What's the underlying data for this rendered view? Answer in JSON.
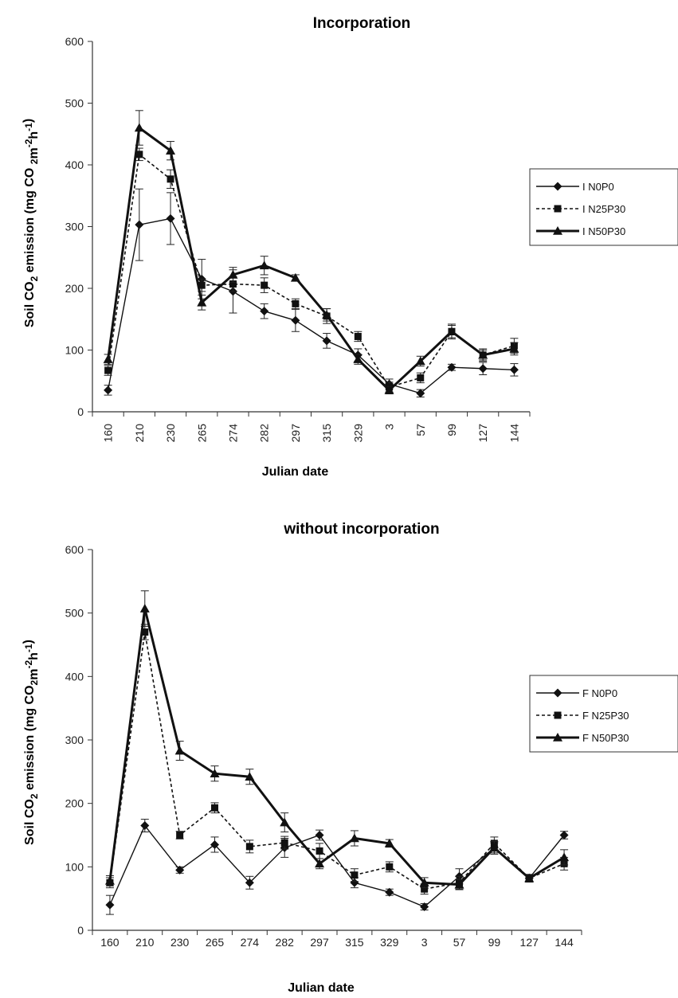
{
  "chart_data": [
    {
      "type": "line",
      "title": "Incorporation",
      "xlabel": "Julian date",
      "ylabel": [
        "Soil CO",
        "2",
        " emission (mg CO ",
        "2",
        "m",
        "-2",
        "h",
        "-1",
        ")"
      ],
      "categories": [
        "160",
        "210",
        "230",
        "265",
        "274",
        "282",
        "297",
        "315",
        "329",
        "3",
        "57",
        "99",
        "127",
        "144"
      ],
      "x_tick_rotation": "vertical",
      "ylim": [
        0,
        600
      ],
      "yticks": [
        0,
        100,
        200,
        300,
        400,
        500,
        600
      ],
      "legend_position": "right",
      "series": [
        {
          "name": "I N0P0",
          "marker": "diamond",
          "line_style": "solid-thin",
          "values": [
            35,
            303,
            313,
            215,
            195,
            163,
            148,
            115,
            92,
            45,
            30,
            72,
            70,
            68
          ],
          "errors": [
            8,
            58,
            42,
            32,
            35,
            12,
            18,
            12,
            10,
            8,
            6,
            5,
            10,
            10
          ]
        },
        {
          "name": "I N25P30",
          "marker": "square",
          "line_style": "dotted",
          "values": [
            67,
            417,
            377,
            205,
            207,
            205,
            175,
            155,
            122,
            40,
            55,
            130,
            92,
            107
          ],
          "errors": [
            8,
            10,
            15,
            10,
            12,
            12,
            8,
            12,
            8,
            8,
            8,
            10,
            8,
            12
          ]
        },
        {
          "name": "I N50P30",
          "marker": "triangle",
          "line_style": "solid-thick",
          "values": [
            85,
            460,
            423,
            177,
            222,
            237,
            217,
            157,
            85,
            35,
            82,
            130,
            92,
            102
          ],
          "errors": [
            8,
            28,
            15,
            12,
            12,
            15,
            5,
            10,
            8,
            6,
            8,
            12,
            10,
            10
          ]
        }
      ]
    },
    {
      "type": "line",
      "title": "without incorporation",
      "xlabel": "Julian date",
      "ylabel": [
        "Soil CO",
        "2",
        " emission (mg CO",
        "2",
        "m",
        "-2",
        "h",
        "-1",
        ")"
      ],
      "categories": [
        "160",
        "210",
        "230",
        "265",
        "274",
        "282",
        "297",
        "315",
        "329",
        "3",
        "57",
        "99",
        "127",
        "144"
      ],
      "x_tick_rotation": "horizontal",
      "ylim": [
        0,
        600
      ],
      "yticks": [
        0,
        100,
        200,
        300,
        400,
        500,
        600
      ],
      "legend_position": "right",
      "series": [
        {
          "name": "F N0P0",
          "marker": "diamond",
          "line_style": "solid-thin",
          "values": [
            40,
            165,
            95,
            135,
            75,
            130,
            150,
            75,
            60,
            37,
            85,
            130,
            82,
            150
          ],
          "errors": [
            15,
            10,
            5,
            12,
            10,
            15,
            8,
            8,
            5,
            5,
            12,
            8,
            6,
            6
          ]
        },
        {
          "name": "F N25P30",
          "marker": "square",
          "line_style": "dotted",
          "values": [
            75,
            470,
            150,
            193,
            132,
            138,
            125,
            87,
            100,
            65,
            75,
            137,
            82,
            105
          ],
          "errors": [
            8,
            12,
            6,
            8,
            10,
            10,
            12,
            10,
            8,
            8,
            10,
            10,
            6,
            10
          ]
        },
        {
          "name": "F N50P30",
          "marker": "triangle",
          "line_style": "solid-thick",
          "values": [
            78,
            507,
            283,
            247,
            242,
            170,
            105,
            145,
            137,
            75,
            72,
            130,
            82,
            115
          ],
          "errors": [
            8,
            28,
            15,
            12,
            12,
            15,
            8,
            12,
            6,
            8,
            8,
            10,
            6,
            12
          ]
        }
      ]
    }
  ]
}
